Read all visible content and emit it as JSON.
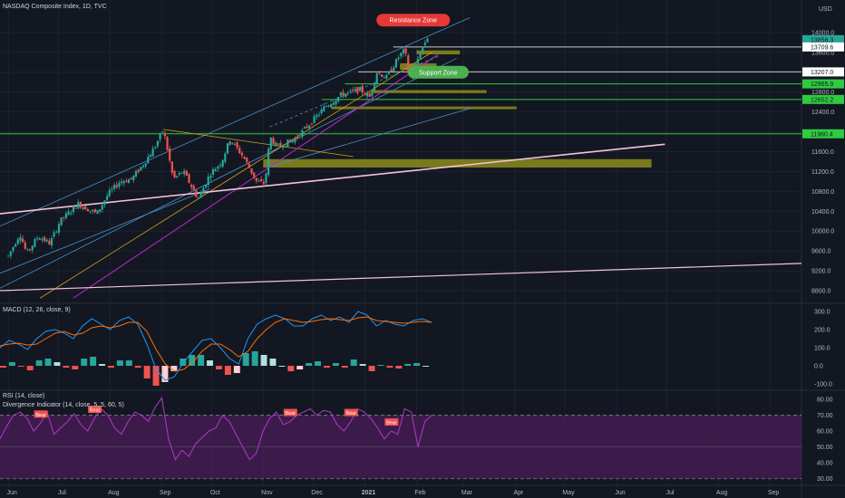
{
  "header": {
    "title": "NASDAQ Composite Index, 1D, TVC"
  },
  "colors": {
    "bg": "#131722",
    "grid": "#1e222d",
    "up": "#26a69a",
    "down": "#ef5350",
    "trend_blue": "#4a90c8",
    "trend_magenta": "#c026d3",
    "trend_orange": "#d4a017",
    "trend_pink": "#f3c4d8",
    "zone_olive": "#8c8c1a",
    "support_green": "#2ecc40",
    "resistance_white": "#c8c8c8",
    "macd_line": "#2196f3",
    "signal_line": "#ff6d00",
    "rsi_line": "#b039c8",
    "rsi_band": "#4b1e5a"
  },
  "chart_data": [
    {
      "type": "candlestick",
      "title": "NASDAQ Composite Index, 1D, TVC",
      "unit": "USD",
      "ylim": [
        8600,
        14400
      ],
      "y_ticks": [
        8800,
        9200,
        9600,
        10000,
        10400,
        10800,
        11200,
        11600,
        12000,
        12400,
        12800,
        13200,
        13600,
        14000
      ],
      "y_tick_labels": [
        "8800.0",
        "9200.0",
        "9600.0",
        "10000.0",
        "10400.0",
        "10800.0",
        "11200.0",
        "11600.0",
        "12000.0",
        "12400.0",
        "12800.0",
        "13200.0",
        "13600.0",
        "14000.0"
      ],
      "x_labels": [
        "Jun",
        "Jul",
        "Aug",
        "Sep",
        "Oct",
        "Nov",
        "Dec",
        "2021",
        "Feb",
        "Mar",
        "Apr",
        "May",
        "Jun",
        "Jul",
        "Aug",
        "Sep"
      ],
      "price_close_path": [
        [
          "2020-06-01",
          9500
        ],
        [
          "2020-06-08",
          9950
        ],
        [
          "2020-06-12",
          9550
        ],
        [
          "2020-06-19",
          9900
        ],
        [
          "2020-06-26",
          9750
        ],
        [
          "2020-07-02",
          10200
        ],
        [
          "2020-07-13",
          10550
        ],
        [
          "2020-07-24",
          10350
        ],
        [
          "2020-07-31",
          10750
        ],
        [
          "2020-08-07",
          11000
        ],
        [
          "2020-08-14",
          11050
        ],
        [
          "2020-08-21",
          11350
        ],
        [
          "2020-08-28",
          11700
        ],
        [
          "2020-09-02",
          12050
        ],
        [
          "2020-09-08",
          11050
        ],
        [
          "2020-09-14",
          11200
        ],
        [
          "2020-09-23",
          10650
        ],
        [
          "2020-09-30",
          11150
        ],
        [
          "2020-10-07",
          11400
        ],
        [
          "2020-10-12",
          11850
        ],
        [
          "2020-10-20",
          11500
        ],
        [
          "2020-10-28",
          11000
        ],
        [
          "2020-11-02",
          10950
        ],
        [
          "2020-11-05",
          11900
        ],
        [
          "2020-11-09",
          11700
        ],
        [
          "2020-11-20",
          11850
        ],
        [
          "2020-11-30",
          12200
        ],
        [
          "2020-12-08",
          12500
        ],
        [
          "2020-12-18",
          12750
        ],
        [
          "2020-12-29",
          12850
        ],
        [
          "2021-01-04",
          12700
        ],
        [
          "2021-01-08",
          13200
        ],
        [
          "2021-01-14",
          13100
        ],
        [
          "2021-01-22",
          13550
        ],
        [
          "2021-01-25",
          13650
        ],
        [
          "2021-01-27",
          13200
        ],
        [
          "2021-01-29",
          13080
        ],
        [
          "2021-02-03",
          13600
        ],
        [
          "2021-02-09",
          14000
        ]
      ],
      "price_labels": [
        {
          "value": 13856.3,
          "text": "13856.3",
          "color": "#26a69a"
        },
        {
          "value": 13709.6,
          "text": "13709.6",
          "color": "#c8c8c8"
        },
        {
          "value": 13207.0,
          "text": "13207.0",
          "color": "#c8c8c8"
        },
        {
          "value": 12965.9,
          "text": "12965.9",
          "color": "#2ecc40"
        },
        {
          "value": 12652.2,
          "text": "12652.2",
          "color": "#2ecc40"
        },
        {
          "value": 11960.4,
          "text": "11960.4",
          "color": "#2ecc40"
        }
      ],
      "annotations": [
        {
          "text": "Resistance Zone",
          "date": "2021-01-30",
          "value": 14250,
          "color": "#e53935"
        },
        {
          "text": "Support Zone",
          "date": "2021-02-14",
          "value": 13200,
          "color": "#4caf50"
        }
      ],
      "zones": [
        {
          "from": "2021-02-01",
          "to": "2021-02-27",
          "low": 13560,
          "high": 13640
        },
        {
          "from": "2021-01-22",
          "to": "2021-02-13",
          "low": 13250,
          "high": 13380
        },
        {
          "from": "2021-01-05",
          "to": "2021-03-15",
          "low": 12780,
          "high": 12840
        },
        {
          "from": "2020-12-12",
          "to": "2021-04-02",
          "low": 12460,
          "high": 12510
        },
        {
          "from": "2020-11-01",
          "to": "2021-06-22",
          "low": 11280,
          "high": 11450
        }
      ],
      "grid": true
    },
    {
      "type": "bar",
      "title": "MACD (12, 26, close, 9)",
      "ylim": [
        -120,
        330
      ],
      "y_ticks": [
        -100,
        0,
        100,
        200,
        300
      ],
      "y_tick_labels": [
        "-100.0",
        "0.0",
        "100.0",
        "200.0",
        "300.0"
      ],
      "series": [
        {
          "name": "MACD",
          "values": [
            100,
            140,
            120,
            90,
            150,
            190,
            200,
            180,
            150,
            220,
            260,
            230,
            200,
            250,
            270,
            230,
            120,
            -20,
            -80,
            -60,
            20,
            80,
            140,
            150,
            100,
            40,
            10,
            150,
            230,
            260,
            280,
            260,
            220,
            220,
            260,
            280,
            250,
            270,
            240,
            300,
            280,
            220,
            250,
            230,
            220,
            250,
            260,
            240
          ]
        },
        {
          "name": "Signal",
          "values": [
            110,
            120,
            125,
            115,
            120,
            150,
            180,
            190,
            170,
            180,
            210,
            220,
            210,
            220,
            240,
            240,
            190,
            90,
            10,
            -30,
            -20,
            20,
            80,
            120,
            120,
            90,
            50,
            80,
            150,
            200,
            240,
            260,
            250,
            240,
            245,
            255,
            260,
            255,
            250,
            265,
            270,
            250,
            245,
            240,
            235,
            240,
            245,
            240
          ]
        }
      ],
      "histogram": [
        -10,
        20,
        -5,
        -25,
        30,
        40,
        20,
        -10,
        -20,
        40,
        50,
        10,
        -10,
        30,
        30,
        -10,
        -70,
        -110,
        -90,
        -30,
        40,
        60,
        60,
        30,
        -20,
        -50,
        -40,
        70,
        80,
        60,
        40,
        0,
        -30,
        -20,
        15,
        25,
        -10,
        15,
        -10,
        35,
        10,
        -30,
        5,
        -10,
        -15,
        10,
        15,
        0
      ]
    },
    {
      "type": "line",
      "title": "RSI (14, close)",
      "subtitle": "Divergence Indicator (14, close, 5, 5, 60, 5)",
      "ylim": [
        27,
        84
      ],
      "y_ticks": [
        30,
        40,
        50,
        60,
        70,
        80
      ],
      "y_tick_labels": [
        "30.00",
        "40.00",
        "50.00",
        "60.00",
        "70.00",
        "80.00"
      ],
      "band": [
        30,
        70
      ],
      "series": [
        {
          "name": "RSI",
          "values": [
            55,
            63,
            70,
            72,
            68,
            60,
            65,
            72,
            58,
            62,
            66,
            71,
            64,
            60,
            68,
            74,
            70,
            62,
            58,
            66,
            72,
            70,
            66,
            75,
            81,
            55,
            42,
            48,
            44,
            52,
            56,
            60,
            62,
            70,
            66,
            58,
            50,
            42,
            46,
            60,
            68,
            72,
            64,
            66,
            70,
            72,
            74,
            70,
            73,
            72,
            64,
            60,
            66,
            74,
            72,
            68,
            62,
            55,
            60,
            58,
            74,
            72,
            50,
            66,
            70
          ]
        }
      ],
      "divergence_labels": [
        {
          "text": "Bear",
          "index": 6
        },
        {
          "text": "Bear",
          "index": 14
        },
        {
          "text": "Bear",
          "index": 43
        },
        {
          "text": "Bear",
          "index": 52
        },
        {
          "text": "Bear",
          "index": 58
        }
      ]
    }
  ]
}
